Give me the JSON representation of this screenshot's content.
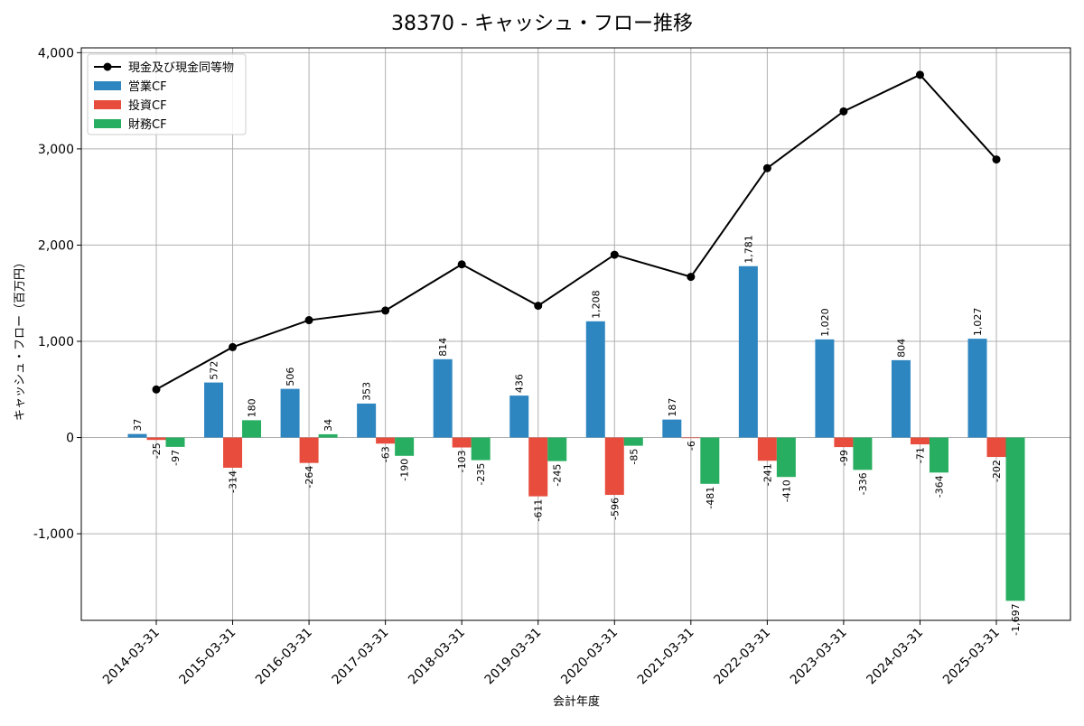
{
  "chart_data": {
    "type": "bar",
    "title": "38370 - キャッシュ・フロー推移",
    "xlabel": "会計年度",
    "ylabel": "キャッシュ・フロー（百万円）",
    "ylim": [
      -1900,
      4050
    ],
    "yticks": [
      -1000,
      0,
      1000,
      2000,
      3000,
      4000
    ],
    "ytick_labels": [
      "-1,000",
      "0",
      "1,000",
      "2,000",
      "3,000",
      "4,000"
    ],
    "grid": true,
    "legend_position": "top-left",
    "categories": [
      "2014-03-31",
      "2015-03-31",
      "2016-03-31",
      "2017-03-31",
      "2018-03-31",
      "2019-03-31",
      "2020-03-31",
      "2021-03-31",
      "2022-03-31",
      "2023-03-31",
      "2024-03-31",
      "2025-03-31"
    ],
    "series": [
      {
        "name": "営業CF",
        "kind": "bar",
        "color": "#2e86c1",
        "values": [
          37,
          572,
          506,
          353,
          814,
          436,
          1208,
          187,
          1781,
          1020,
          804,
          1027
        ],
        "labels": [
          "37",
          "572",
          "506",
          "353",
          "814",
          "436",
          "1,208",
          "187",
          "1,781",
          "1,020",
          "804",
          "1,027"
        ]
      },
      {
        "name": "投資CF",
        "kind": "bar",
        "color": "#e74c3c",
        "values": [
          -25,
          -314,
          -264,
          -63,
          -103,
          -611,
          -596,
          -6,
          -241,
          -99,
          -71,
          -202
        ],
        "labels": [
          "-25",
          "-314",
          "-264",
          "-63",
          "-103",
          "-611",
          "-596",
          "-6",
          "-241",
          "-99",
          "-71",
          "-202"
        ]
      },
      {
        "name": "財務CF",
        "kind": "bar",
        "color": "#27ae60",
        "values": [
          -97,
          180,
          34,
          -190,
          -235,
          -245,
          -85,
          -481,
          -410,
          -336,
          -364,
          -1697
        ],
        "labels": [
          "-97",
          "180",
          "34",
          "-190",
          "-235",
          "-245",
          "-85",
          "-481",
          "-410",
          "-336",
          "-364",
          "-1,697"
        ]
      },
      {
        "name": "現金及び現金同等物",
        "kind": "line",
        "color": "#000000",
        "values": [
          500,
          940,
          1220,
          1320,
          1800,
          1370,
          1900,
          1670,
          2800,
          3390,
          3770,
          2890
        ]
      }
    ]
  }
}
